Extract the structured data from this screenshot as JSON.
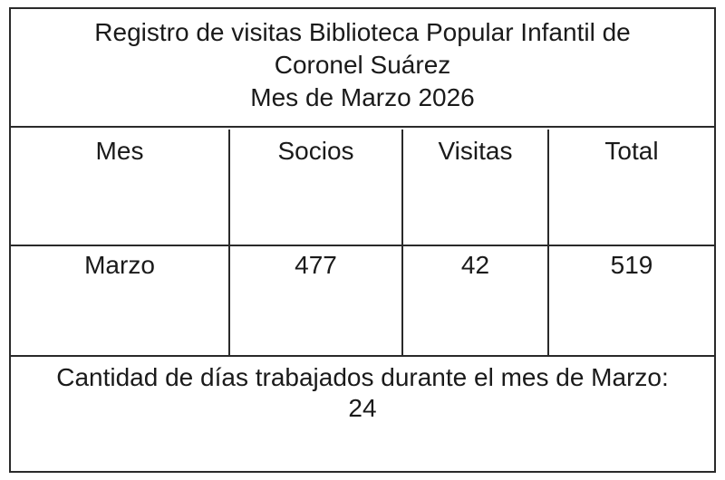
{
  "title": {
    "line1": "Registro de visitas Biblioteca Popular Infantil de",
    "line2": "Coronel Suárez",
    "line3": "Mes de Marzo 2026"
  },
  "table": {
    "headers": [
      "Mes",
      "Socios",
      "Visitas",
      "Total"
    ],
    "rows": [
      [
        "Marzo",
        "477",
        "42",
        "519"
      ]
    ]
  },
  "footer": {
    "line1": "Cantidad de días trabajados durante el mes de Marzo:",
    "line2": "24"
  }
}
